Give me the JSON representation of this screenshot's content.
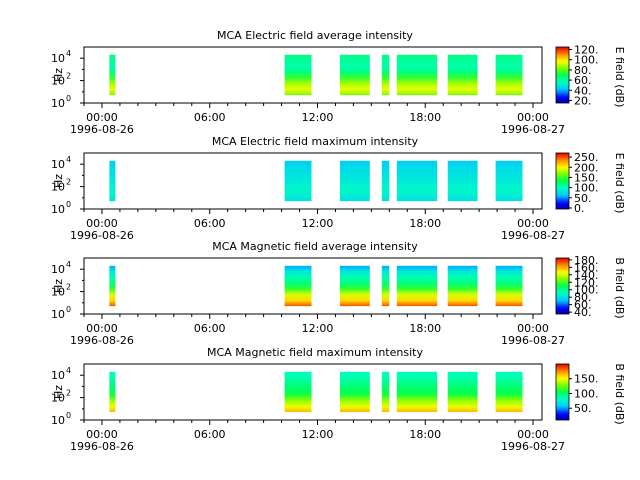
{
  "chart_data": [
    {
      "type": "heatmap",
      "title": "MCA  Electric field average intensity",
      "ylabel": "Hz",
      "colorbar_label": "E field (dB)",
      "colorbar_ticks": [
        "120.",
        "100.",
        "80.",
        "60.",
        "40.",
        "20."
      ],
      "colorbar_range": [
        15,
        125
      ],
      "colormap": "rainbow",
      "level_range": [
        45,
        110
      ]
    },
    {
      "type": "heatmap",
      "title": "MCA  Electric field maximum intensity",
      "ylabel": "Hz",
      "colorbar_label": "E field (dB)",
      "colorbar_ticks": [
        "250.",
        "200.",
        "150.",
        "100.",
        "50.",
        "0."
      ],
      "colorbar_range": [
        -5,
        270
      ],
      "colormap": "rainbow",
      "level_range": [
        70,
        115
      ]
    },
    {
      "type": "heatmap",
      "title": "MCA  Magnetic field average intensity",
      "ylabel": "Hz",
      "colorbar_label": "B field (dB)",
      "colorbar_ticks": [
        "180.",
        "160.",
        "140.",
        "120.",
        "100.",
        "80.",
        "60.",
        "40."
      ],
      "colorbar_range": [
        35,
        185
      ],
      "colormap": "rainbow",
      "level_range": [
        85,
        140
      ]
    },
    {
      "type": "heatmap",
      "title": "MCA  Magnetic field maximum intensity",
      "ylabel": "Hz",
      "colorbar_label": "B field (dB)",
      "colorbar_ticks": [
        "150.",
        "100.",
        "50."
      ],
      "colorbar_range": [
        10,
        200
      ],
      "colormap": "rainbow",
      "level_range": [
        95,
        150
      ]
    }
  ],
  "x_axis": {
    "start": "1996-08-26T00:00",
    "end": "1996-08-27T00:00",
    "range": [
      "1996-08-25T23:00",
      "1996-08-27T00:30"
    ],
    "tick_labels": [
      {
        "time": "1996-08-26T00:00",
        "label": "00:00",
        "date": "1996-08-26"
      },
      {
        "time": "1996-08-26T06:00",
        "label": "06:00",
        "date": ""
      },
      {
        "time": "1996-08-26T12:00",
        "label": "12:00",
        "date": ""
      },
      {
        "time": "1996-08-26T18:00",
        "label": "18:00",
        "date": ""
      },
      {
        "time": "1996-08-27T00:00",
        "label": "00:00",
        "date": "1996-08-27"
      }
    ]
  },
  "y_axis": {
    "scale": "log",
    "range_hz": [
      1,
      100000
    ],
    "tick_labels": [
      {
        "hz": 1,
        "base": "10",
        "exp": "0"
      },
      {
        "hz": 100,
        "base": "10",
        "exp": "2"
      },
      {
        "hz": 10000,
        "base": "10",
        "exp": "4"
      }
    ]
  },
  "data_intervals": [
    {
      "start": "1996-08-26T00:25",
      "end": "1996-08-26T00:45"
    },
    {
      "start": "1996-08-26T10:10",
      "end": "1996-08-26T11:40"
    },
    {
      "start": "1996-08-26T13:15",
      "end": "1996-08-26T14:55"
    },
    {
      "start": "1996-08-26T15:35",
      "end": "1996-08-26T16:00"
    },
    {
      "start": "1996-08-26T16:25",
      "end": "1996-08-26T18:40"
    },
    {
      "start": "1996-08-26T19:15",
      "end": "1996-08-26T20:55"
    },
    {
      "start": "1996-08-26T21:55",
      "end": "1996-08-26T23:25"
    }
  ],
  "frequency_range_hz": [
    5,
    20000
  ]
}
